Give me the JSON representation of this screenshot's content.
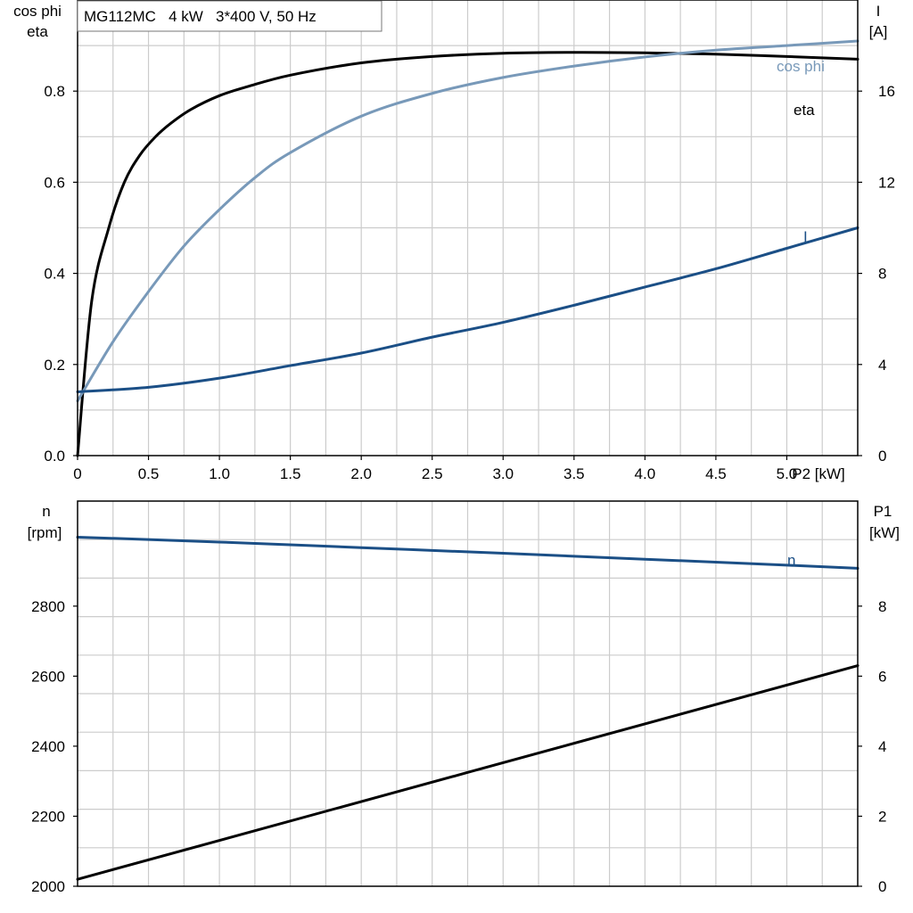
{
  "chart_data": [
    {
      "type": "line",
      "title": "MG112MC   4 kW   3*400 V, 50 Hz",
      "xlabel": "P2 [kW]",
      "xlim": [
        0,
        5.5
      ],
      "x_ticks": [
        "0",
        "0.5",
        "1.0",
        "1.5",
        "2.0",
        "2.5",
        "3.0",
        "3.5",
        "4.0",
        "4.5",
        "5.0"
      ],
      "y_left_label": [
        "cos phi",
        "eta"
      ],
      "y_left_lim": [
        0,
        1.0
      ],
      "y_left_ticks": [
        "0.0",
        "0.2",
        "0.4",
        "0.6",
        "0.8"
      ],
      "y_right_label": [
        "I",
        "[A]"
      ],
      "y_right_lim": [
        0,
        20
      ],
      "y_right_ticks": [
        "0",
        "4",
        "8",
        "12",
        "16"
      ],
      "grid": true,
      "series": [
        {
          "name": "eta",
          "axis": "left",
          "color": "#000000",
          "x": [
            0,
            0.1,
            0.22,
            0.33,
            0.44,
            0.55,
            0.66,
            0.8,
            1.0,
            1.2,
            1.5,
            2.0,
            2.5,
            3.0,
            3.5,
            4.0,
            4.5,
            5.0,
            5.5
          ],
          "y": [
            0.0,
            0.34,
            0.5,
            0.6,
            0.66,
            0.7,
            0.73,
            0.76,
            0.79,
            0.81,
            0.835,
            0.862,
            0.876,
            0.883,
            0.885,
            0.884,
            0.881,
            0.876,
            0.87
          ]
        },
        {
          "name": "cos phi",
          "axis": "left",
          "color": "#7899b9",
          "x": [
            0,
            0.25,
            0.5,
            0.75,
            1.0,
            1.25,
            1.5,
            2.0,
            2.5,
            3.0,
            3.5,
            4.0,
            4.5,
            5.0,
            5.5
          ],
          "y": [
            0.12,
            0.25,
            0.36,
            0.46,
            0.54,
            0.61,
            0.665,
            0.745,
            0.795,
            0.83,
            0.855,
            0.875,
            0.89,
            0.9,
            0.91
          ]
        },
        {
          "name": "I",
          "axis": "right",
          "color": "#1b4f86",
          "x": [
            0,
            0.5,
            1.0,
            1.5,
            2.0,
            2.5,
            3.0,
            3.5,
            4.0,
            4.5,
            5.0,
            5.5
          ],
          "y": [
            2.8,
            3.0,
            3.4,
            3.95,
            4.5,
            5.2,
            5.85,
            6.6,
            7.4,
            8.2,
            9.1,
            10.0
          ]
        }
      ]
    },
    {
      "type": "line",
      "xlim": [
        0,
        5.5
      ],
      "y_left_label": [
        "n",
        "[rpm]"
      ],
      "y_left_lim": [
        2000,
        3100
      ],
      "y_left_ticks": [
        "2000",
        "2200",
        "2400",
        "2600",
        "2800"
      ],
      "y_right_label": [
        "P1",
        "[kW]"
      ],
      "y_right_lim": [
        0,
        11
      ],
      "y_right_ticks": [
        "0",
        "2",
        "4",
        "6",
        "8"
      ],
      "grid": true,
      "series": [
        {
          "name": "n",
          "axis": "left",
          "color": "#1b4f86",
          "x": [
            0,
            1.0,
            2.0,
            3.0,
            4.0,
            5.0,
            5.5
          ],
          "y": [
            2997,
            2983,
            2967,
            2951,
            2934,
            2917,
            2908
          ]
        },
        {
          "axis": "right",
          "color": "#000000",
          "x": [
            0,
            5.5
          ],
          "y": [
            0.2,
            6.3
          ]
        }
      ]
    }
  ]
}
